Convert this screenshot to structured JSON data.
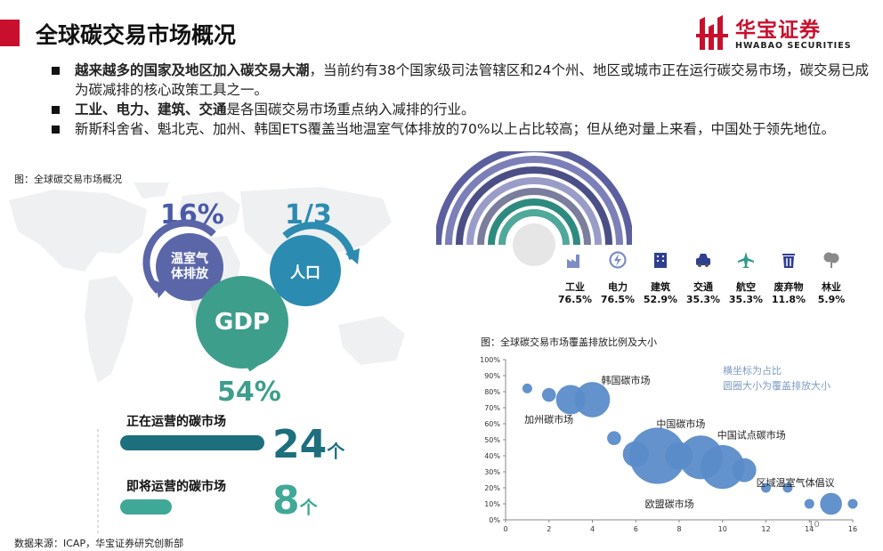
{
  "header": {
    "title": "全球碳交易市场概况",
    "logo_cn": "华宝证券",
    "logo_en": "HWABAO SECURITIES",
    "accent": "#c8102e"
  },
  "bullets": [
    {
      "bold": "越来越多的国家及地区加入碳交易大潮",
      "rest": "，当前约有38个国家级司法管辖区和24个州、地区或城市正在运行碳交易市场，碳交易已成为碳减排的核心政策工具之一。"
    },
    {
      "bold": "工业、电力、建筑、交通",
      "rest": "是各国碳交易市场重点纳入减排的行业。"
    },
    {
      "bold": "",
      "rest": "新斯科舍省、魁北克、加州、韩国ETS覆盖当地温室气体排放的70%以上占比较高；但从绝对量上来看，中国处于领先地位。"
    }
  ],
  "left_panel": {
    "caption": "图：全球碳交易市场概况",
    "ghg": {
      "label": "温室气体排放",
      "pct": "16%",
      "color": "#5b66a8"
    },
    "population": {
      "label": "人口",
      "pct": "1/3",
      "color": "#2c8bb0"
    },
    "gdp": {
      "label": "GDP",
      "pct": "54%",
      "color": "#3d9e8c"
    },
    "markets": [
      {
        "label": "正在运营的碳市场",
        "num": "24",
        "unit": "个",
        "color": "#1d6f7d",
        "count": 24
      },
      {
        "label": "即将运营的碳市场",
        "num": "8",
        "unit": "个",
        "color": "#3fa896",
        "count": 8
      }
    ]
  },
  "sectors": [
    {
      "name": "工业",
      "pct": "76.5%",
      "value": 76.5,
      "icon": "factory-icon"
    },
    {
      "name": "电力",
      "pct": "76.5%",
      "value": 76.5,
      "icon": "power-icon"
    },
    {
      "name": "建筑",
      "pct": "52.9%",
      "value": 52.9,
      "icon": "building-icon"
    },
    {
      "name": "交通",
      "pct": "35.3%",
      "value": 35.3,
      "icon": "car-icon"
    },
    {
      "name": "航空",
      "pct": "35.3%",
      "value": 35.3,
      "icon": "airplane-icon"
    },
    {
      "name": "废弃物",
      "pct": "11.8%",
      "value": 11.8,
      "icon": "trash-icon"
    },
    {
      "name": "林业",
      "pct": "5.9%",
      "value": 5.9,
      "icon": "tree-icon"
    }
  ],
  "ring_colors": [
    "#5b5f9e",
    "#7c7fb8",
    "#4c4f86",
    "#9a9cc8",
    "#7a7d9c",
    "#2e8a7e",
    "#4fa89a"
  ],
  "chart_data": {
    "type": "scatter",
    "caption": "图：全球碳交易市场覆盖排放比例及大小",
    "legend_text": [
      "横坐标为占比",
      "圆圈大小为覆盖排放大小"
    ],
    "xlim": [
      0,
      16
    ],
    "ylim": [
      0,
      1
    ],
    "x_ticks": [
      "0",
      "2",
      "4",
      "6",
      "8",
      "10",
      "12",
      "14",
      "16"
    ],
    "y_ticks": [
      "0%",
      "10%",
      "20%",
      "30%",
      "40%",
      "50%",
      "60%",
      "70%",
      "80%",
      "90%",
      "100%"
    ],
    "axis_color": "#888888",
    "bubble_color": "#5b8cc9",
    "points": [
      {
        "x": 1.0,
        "y": 0.82,
        "size": 1,
        "label": ""
      },
      {
        "x": 2.0,
        "y": 0.78,
        "size": 2,
        "label": ""
      },
      {
        "x": 3.0,
        "y": 0.75,
        "size": 9,
        "label": "加州碳市场"
      },
      {
        "x": 4.0,
        "y": 0.75,
        "size": 13,
        "label": "韩国碳市场"
      },
      {
        "x": 5.0,
        "y": 0.51,
        "size": 2,
        "label": ""
      },
      {
        "x": 6.0,
        "y": 0.41,
        "size": 7,
        "label": ""
      },
      {
        "x": 7.0,
        "y": 0.4,
        "size": 33,
        "label": "欧盟碳市场"
      },
      {
        "x": 8.0,
        "y": 0.4,
        "size": 8,
        "label": ""
      },
      {
        "x": 9.0,
        "y": 0.39,
        "size": 20,
        "label": "中国碳市场"
      },
      {
        "x": 10.0,
        "y": 0.33,
        "size": 20,
        "label": "中国试点碳市场"
      },
      {
        "x": 11.0,
        "y": 0.31,
        "size": 6,
        "label": ""
      },
      {
        "x": 12.0,
        "y": 0.2,
        "size": 1,
        "label": ""
      },
      {
        "x": 13.0,
        "y": 0.2,
        "size": 1,
        "label": ""
      },
      {
        "x": 14.0,
        "y": 0.1,
        "size": 1,
        "label": ""
      },
      {
        "x": 15.0,
        "y": 0.1,
        "size": 5,
        "label": "区域温室气体倡议"
      },
      {
        "x": 16.0,
        "y": 0.1,
        "size": 1,
        "label": ""
      }
    ],
    "stray_text": "10"
  },
  "footer": {
    "source": "数据来源：ICAP，华宝证券研究创新部"
  }
}
